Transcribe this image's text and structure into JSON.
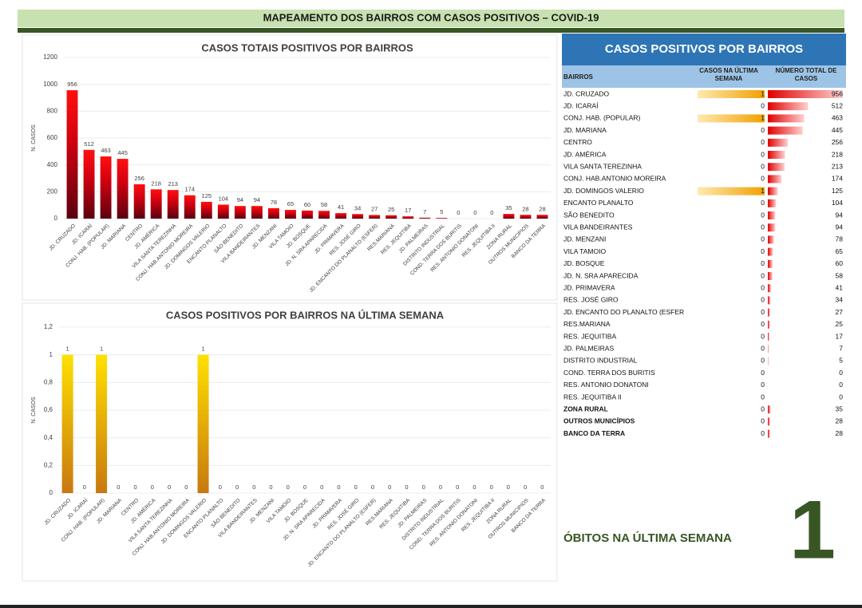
{
  "header": {
    "title": "MAPEAMENTO DOS BAIRROS COM CASOS POSITIVOS – COVID-19"
  },
  "chart_data": [
    {
      "type": "bar",
      "title": "CASOS TOTAIS POSITIVOS POR BAIRROS",
      "y_label": "N. CASOS",
      "categories": [
        "JD. CRUZADO",
        "JD. ICARAÍ",
        "CONJ. HAB. (POPULAR)",
        "JD. MARIANA",
        "CENTRO",
        "JD. AMÉRICA",
        "VILA SANTA TEREZINHA",
        "CONJ. HAB.ANTONIO MOREIRA",
        "JD. DOMINGOS VALERIO",
        "ENCANTO PLANALTO",
        "SÃO BENEDITO",
        "VILA BANDEIRANTES",
        "JD. MENZANI",
        "VILA TAMOIO",
        "JD. BOSQUE",
        "JD. N. SRA APARECIDA",
        "JD. PRIMAVERA",
        "RES. JOSÉ GIRO",
        "JD. ENCANTO DO PLANALTO (ESFER)",
        "RES.MARIANA",
        "RES. JEQUITIBA",
        "JD. PALMEIRAS",
        "DISTRITO INDUSTRIAL",
        "COND. TERRA DOS BURITIS",
        "RES. ANTONIO DONATONI",
        "RES. JEQUITIBA II",
        "ZONA RURAL",
        "OUTROS MUNICIPIOS",
        "BANCO DA TERRA"
      ],
      "values": [
        956,
        512,
        463,
        445,
        256,
        218,
        213,
        174,
        125,
        104,
        94,
        94,
        78,
        65,
        60,
        58,
        41,
        34,
        27,
        25,
        17,
        7,
        5,
        0,
        0,
        0,
        35,
        28,
        28
      ],
      "color": "#e00000",
      "ylim": [
        0,
        1200
      ],
      "yticks": [
        0,
        200,
        400,
        600,
        800,
        1000,
        1200
      ],
      "grid": true
    },
    {
      "type": "bar",
      "title": "CASOS POSITIVOS POR BAIRROS NA ÚLTIMA SEMANA",
      "y_label": "N. CASOS",
      "categories": [
        "JD. CRUZADO",
        "JD. ICARAÍ",
        "CONJ. HAB. (POPULAR)",
        "JD. MARIANA",
        "CENTRO",
        "JD. AMÉRICA",
        "VILA SANTA TEREZINHA",
        "CONJ. HAB.ANTONIO MOREIRA",
        "JD. DOMINGOS VALERIO",
        "ENCANTO PLANALTO",
        "SÃO BENEDITO",
        "VILA BANDEIRANTES",
        "JD. MENZANI",
        "VILA TAMOIO",
        "JD. BOSQUE",
        "JD. N. SRA APARECIDA",
        "JD. PRIMAVERA",
        "RES. JOSÉ GIRO",
        "JD. ENCANTO DO PLANALTO (ESFER)",
        "RES.MARIANA",
        "RES. JEQUITIBA",
        "JD. PALMEIRAS",
        "DISTRITO INDUSTRIAL",
        "COND. TERRA DOS BURITIS",
        "RES. ANTONIO DONATONI",
        "RES. JEQUITIBA II",
        "ZONA RURAL",
        "OUTROS MUNICIPIOS",
        "BANCO DA TERRA"
      ],
      "values": [
        1,
        0,
        1,
        0,
        0,
        0,
        0,
        0,
        1,
        0,
        0,
        0,
        0,
        0,
        0,
        0,
        0,
        0,
        0,
        0,
        0,
        0,
        0,
        0,
        0,
        0,
        0,
        0,
        0
      ],
      "color": "#f0b000",
      "ylim": [
        0,
        1.2
      ],
      "yticks": [
        0,
        {
          "value": 0.2,
          "label": "0,2"
        },
        {
          "value": 0.4,
          "label": "0,4"
        },
        {
          "value": 0.6,
          "label": "0,6"
        },
        {
          "value": 0.8,
          "label": "0,8"
        },
        1,
        {
          "value": 1.2,
          "label": "1,2"
        }
      ],
      "grid": true
    }
  ],
  "table": {
    "title": "CASOS POSITIVOS POR BAIRROS",
    "columns": [
      "BAIRROS",
      "CASOS NA ÚLTIMA SEMANA",
      "NÚMERO TOTAL DE CASOS"
    ],
    "rows": [
      [
        "JD. CRUZADO",
        1,
        956
      ],
      [
        "JD. ICARAÍ",
        0,
        512
      ],
      [
        "CONJ. HAB. (POPULAR)",
        1,
        463
      ],
      [
        "JD. MARIANA",
        0,
        445
      ],
      [
        "CENTRO",
        0,
        256
      ],
      [
        "JD. AMÉRICA",
        0,
        218
      ],
      [
        "VILA SANTA TEREZINHA",
        0,
        213
      ],
      [
        "CONJ. HAB.ANTONIO MOREIRA",
        0,
        174
      ],
      [
        "JD. DOMINGOS VALERIO",
        1,
        125
      ],
      [
        "ENCANTO PLANALTO",
        0,
        104
      ],
      [
        "SÃO BENEDITO",
        0,
        94
      ],
      [
        "VILA BANDEIRANTES",
        0,
        94
      ],
      [
        "JD. MENZANI",
        0,
        78
      ],
      [
        "VILA TAMOIO",
        0,
        65
      ],
      [
        "JD. BOSQUE",
        0,
        60
      ],
      [
        "JD. N. SRA APARECIDA",
        0,
        58
      ],
      [
        "JD. PRIMAVERA",
        0,
        41
      ],
      [
        "RES. JOSÉ GIRO",
        0,
        34
      ],
      [
        "JD. ENCANTO DO PLANALTO (ESFER",
        0,
        27
      ],
      [
        "RES.MARIANA",
        0,
        25
      ],
      [
        "RES. JEQUITIBA",
        0,
        17
      ],
      [
        "JD. PALMEIRAS",
        0,
        7
      ],
      [
        "DISTRITO INDUSTRIAL",
        0,
        5
      ],
      [
        "COND. TERRA DOS BURITIS",
        0,
        0
      ],
      [
        "RES. ANTONIO DONATONI",
        0,
        0
      ],
      [
        "RES. JEQUITIBA II",
        0,
        0
      ],
      [
        "ZONA RURAL",
        0,
        35
      ],
      [
        "OUTROS MUNICÍPIOS",
        0,
        28
      ],
      [
        "BANCO DA TERRA",
        0,
        28
      ]
    ]
  },
  "deaths": {
    "label": "ÓBITOS NA ÚLTIMA SEMANA",
    "value": 1
  }
}
